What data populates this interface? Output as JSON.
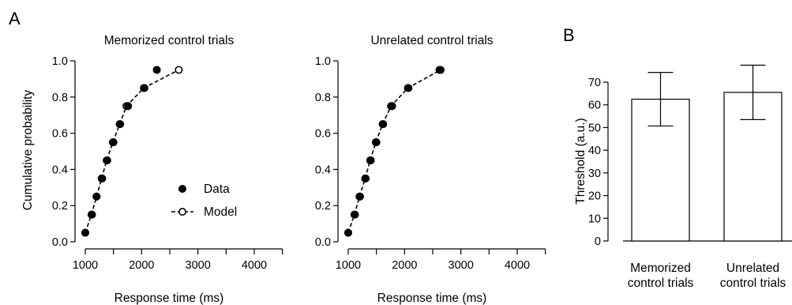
{
  "panels": {
    "a": "A",
    "b": "B"
  },
  "chart_data": [
    {
      "type": "scatter",
      "title": "Memorized control trials",
      "xlabel": "Response time (ms)",
      "ylabel": "Cumulative probability",
      "xlim": [
        900,
        4500
      ],
      "ylim": [
        0,
        1
      ],
      "xticks": [
        1000,
        2000,
        3000,
        4000
      ],
      "xtick_labels": [
        "1000",
        "2000",
        "3000",
        "4000"
      ],
      "xminor": [
        1500,
        2500,
        3500,
        4500
      ],
      "yticks": [
        0,
        0.2,
        0.4,
        0.6,
        0.8,
        1.0
      ],
      "ytick_labels": [
        "0.0",
        "0.2",
        "0.4",
        "0.6",
        "0.8",
        "1.0"
      ],
      "legend": {
        "placement": "bottom-right",
        "entries": [
          "Data",
          "Model"
        ]
      },
      "series": [
        {
          "name": "Data",
          "marker": "filled-circle",
          "x": [
            1000,
            1120,
            1200,
            1300,
            1390,
            1500,
            1620,
            1760,
            2050,
            2270
          ],
          "y": [
            0.05,
            0.15,
            0.25,
            0.35,
            0.45,
            0.55,
            0.65,
            0.75,
            0.85,
            0.95
          ]
        },
        {
          "name": "Model",
          "marker": "open-circle",
          "line": "dashed",
          "x": [
            1000,
            1110,
            1200,
            1290,
            1380,
            1490,
            1610,
            1730,
            2040,
            2660
          ],
          "y": [
            0.05,
            0.15,
            0.25,
            0.35,
            0.45,
            0.55,
            0.65,
            0.75,
            0.85,
            0.95
          ]
        }
      ]
    },
    {
      "type": "scatter",
      "title": "Unrelated control trials",
      "xlabel": "Response time (ms)",
      "xlim": [
        900,
        4500
      ],
      "ylim": [
        0,
        1
      ],
      "xticks": [
        1000,
        2000,
        3000,
        4000
      ],
      "xtick_labels": [
        "1000",
        "2000",
        "3000",
        "4000"
      ],
      "xminor": [
        1500,
        2500,
        3500,
        4500
      ],
      "yticks": [
        0,
        0.2,
        0.4,
        0.6,
        0.8,
        1.0
      ],
      "ytick_labels": [
        "0.0",
        "0.2",
        "0.4",
        "0.6",
        "0.8",
        "1.0"
      ],
      "series": [
        {
          "name": "Data",
          "marker": "filled-circle",
          "x": [
            1000,
            1120,
            1210,
            1310,
            1400,
            1500,
            1620,
            1780,
            2070,
            2620
          ],
          "y": [
            0.05,
            0.15,
            0.25,
            0.35,
            0.45,
            0.55,
            0.65,
            0.75,
            0.85,
            0.95
          ]
        },
        {
          "name": "Model",
          "marker": "open-circle",
          "line": "dashed",
          "x": [
            1000,
            1110,
            1200,
            1300,
            1390,
            1490,
            1610,
            1760,
            2060,
            2640
          ],
          "y": [
            0.05,
            0.15,
            0.25,
            0.35,
            0.45,
            0.55,
            0.65,
            0.75,
            0.85,
            0.95
          ]
        }
      ]
    },
    {
      "type": "bar",
      "ylabel": "Threshold (a.u.)",
      "ylim": [
        0,
        72
      ],
      "yticks": [
        0,
        10,
        20,
        30,
        40,
        50,
        60,
        70
      ],
      "ytick_labels": [
        "0",
        "10",
        "20",
        "30",
        "40",
        "50",
        "60",
        "70"
      ],
      "categories": [
        [
          "Memorized",
          "control trials"
        ],
        [
          "Unrelated",
          "control trials"
        ]
      ],
      "values": [
        62.5,
        65.5
      ],
      "error_low": [
        50.7,
        53.5
      ],
      "error_high": [
        74.3,
        77.5
      ]
    }
  ]
}
